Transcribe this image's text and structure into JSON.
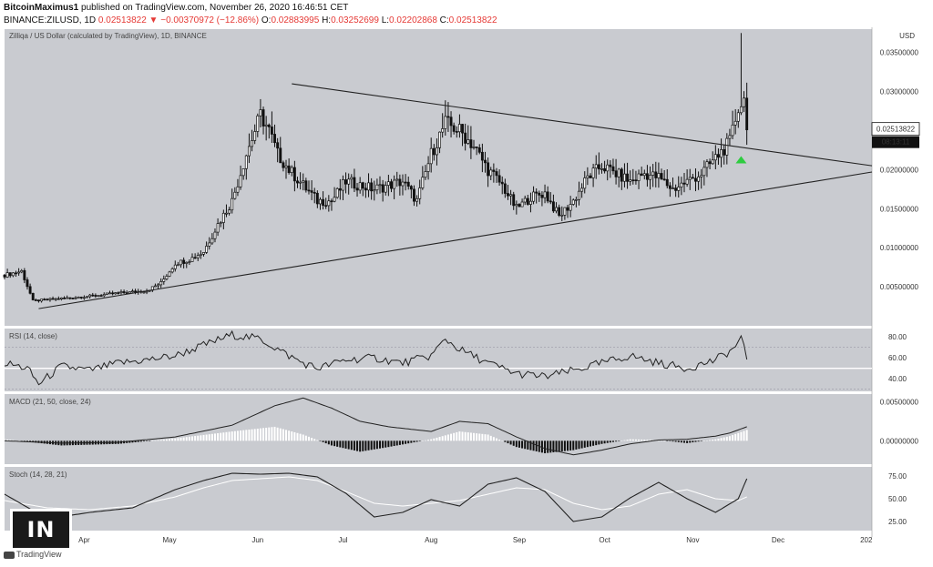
{
  "header": {
    "line1_author": "BitcoinMaximus1",
    "line1_rest": "published on TradingView.com, November 26, 2020 16:46:51 CET",
    "symbol": "BINANCE:ZILUSD, 1D",
    "last": "0.02513822",
    "change": "−0.00370972 (−12.86%)",
    "o_label": "O:",
    "o_value": "0.02883995",
    "h_label": "H:",
    "h_value": "0.03252699",
    "l_label": "L:",
    "l_value": "0.02202868",
    "c_label": "C:",
    "c_value": "0.02513822"
  },
  "colors": {
    "pane_bg": "#c9cbd0",
    "candle": "#111111",
    "trendline": "#222222",
    "arrow": "#2ecc40",
    "down_text": "#e53935"
  },
  "watermark": {
    "logo_text": "IN",
    "tv_text": "TradingView"
  },
  "chart_data": {
    "type": "line",
    "title": "Zilliqa / US Dollar (calculated by TradingView), 1D, BINANCE",
    "currency_label": "USD",
    "price_ylim": [
      0,
      0.038
    ],
    "price_ticks": [
      "0.03500000",
      "0.03000000",
      "0.02500000",
      "0.02000000",
      "0.01500000",
      "0.01000000",
      "0.00500000"
    ],
    "price_tick_values": [
      0.035,
      0.03,
      0.025,
      0.02,
      0.015,
      0.01,
      0.005
    ],
    "last_price_label": "0.02513822",
    "countdown_label": "08:13:11",
    "x_ticks": [
      "Apr",
      "May",
      "Jun",
      "Jul",
      "Aug",
      "Sep",
      "Oct",
      "Nov",
      "Dec",
      "202"
    ],
    "x_tick_days": [
      28,
      58,
      89,
      119,
      150,
      181,
      211,
      242,
      272,
      303
    ],
    "x_range_days": [
      0,
      305
    ],
    "price_series": {
      "day": [
        0,
        6,
        10,
        20,
        30,
        40,
        50,
        55,
        60,
        65,
        70,
        75,
        80,
        85,
        90,
        93,
        96,
        100,
        105,
        110,
        115,
        120,
        130,
        140,
        145,
        150,
        155,
        160,
        165,
        170,
        175,
        180,
        185,
        190,
        195,
        200,
        205,
        210,
        215,
        220,
        225,
        230,
        235,
        240,
        245,
        250,
        255,
        258,
        260,
        261
      ],
      "close": [
        0.0065,
        0.007,
        0.0032,
        0.0035,
        0.0038,
        0.0042,
        0.0045,
        0.0055,
        0.008,
        0.0085,
        0.0095,
        0.013,
        0.016,
        0.022,
        0.027,
        0.025,
        0.022,
        0.02,
        0.018,
        0.016,
        0.016,
        0.0185,
        0.0175,
        0.0185,
        0.016,
        0.022,
        0.026,
        0.025,
        0.023,
        0.02,
        0.018,
        0.015,
        0.0165,
        0.017,
        0.014,
        0.016,
        0.019,
        0.0205,
        0.0195,
        0.0185,
        0.0195,
        0.019,
        0.0175,
        0.0185,
        0.0195,
        0.0215,
        0.0235,
        0.028,
        0.0289,
        0.0251
      ],
      "high_spike_day": 259,
      "high_spike_value": 0.0375
    },
    "trendlines": [
      {
        "name": "",
        "from": [
          101,
          0.031
        ],
        "to": [
          305,
          0.0205
        ]
      },
      {
        "name": "",
        "from": [
          12,
          0.0022
        ],
        "to": [
          305,
          0.0197
        ]
      }
    ],
    "rsi": {
      "title": "RSI (14, close)",
      "ylim": [
        28,
        88
      ],
      "ticks": [
        "80.00",
        "60.00",
        "40.00"
      ],
      "tick_values": [
        80,
        60,
        40
      ],
      "band": [
        30,
        70
      ],
      "day": [
        0,
        8,
        12,
        20,
        30,
        40,
        50,
        60,
        70,
        80,
        90,
        95,
        100,
        105,
        110,
        120,
        130,
        140,
        150,
        155,
        160,
        170,
        180,
        190,
        200,
        210,
        220,
        230,
        240,
        250,
        256,
        259,
        261
      ],
      "values": [
        55,
        50,
        35,
        52,
        48,
        55,
        58,
        62,
        72,
        82,
        78,
        70,
        62,
        55,
        50,
        58,
        60,
        55,
        62,
        78,
        68,
        55,
        45,
        42,
        48,
        55,
        62,
        55,
        50,
        58,
        68,
        78,
        60
      ]
    },
    "macd": {
      "title": "MACD (21, 50, close, 24)",
      "ylim": [
        -0.003,
        0.006
      ],
      "ticks": [
        "0.00500000",
        "0.00000000"
      ],
      "tick_values": [
        0.005,
        0.0
      ],
      "day": [
        0,
        20,
        40,
        60,
        80,
        95,
        105,
        115,
        125,
        135,
        150,
        160,
        170,
        180,
        190,
        200,
        210,
        220,
        230,
        240,
        250,
        255,
        261
      ],
      "macd_line": [
        0.0,
        -0.0003,
        -0.0002,
        0.0005,
        0.002,
        0.0045,
        0.0055,
        0.0042,
        0.0025,
        0.0018,
        0.0012,
        0.0025,
        0.0022,
        0.0005,
        -0.001,
        -0.0018,
        -0.0012,
        -0.0004,
        0.0001,
        0.0002,
        0.0006,
        0.001,
        0.0018
      ],
      "histogram": [
        0.0002,
        -0.0006,
        -0.0004,
        0.0003,
        0.0012,
        0.0018,
        0.0008,
        -0.0006,
        -0.0014,
        -0.0008,
        0.0002,
        0.0012,
        0.0008,
        -0.0008,
        -0.0016,
        -0.0012,
        -0.0004,
        0.0002,
        0.0001,
        -0.0003,
        0.0002,
        0.0006,
        0.0014
      ]
    },
    "stoch": {
      "title": "Stoch (14, 28, 21)",
      "ylim": [
        15,
        85
      ],
      "ticks": [
        "75.00",
        "50.00",
        "25.00"
      ],
      "tick_values": [
        75,
        50,
        25
      ],
      "day": [
        0,
        15,
        30,
        45,
        60,
        70,
        80,
        90,
        100,
        110,
        120,
        130,
        140,
        150,
        160,
        170,
        180,
        190,
        200,
        210,
        220,
        230,
        240,
        250,
        258,
        261
      ],
      "k": [
        55,
        28,
        35,
        40,
        60,
        70,
        78,
        77,
        78,
        74,
        56,
        30,
        35,
        49,
        42,
        66,
        73,
        58,
        25,
        30,
        51,
        68,
        50,
        35,
        50,
        72
      ],
      "d": [
        48,
        40,
        38,
        42,
        52,
        62,
        70,
        72,
        74,
        70,
        58,
        45,
        42,
        45,
        48,
        55,
        62,
        60,
        45,
        38,
        42,
        55,
        60,
        50,
        48,
        52
      ]
    }
  }
}
